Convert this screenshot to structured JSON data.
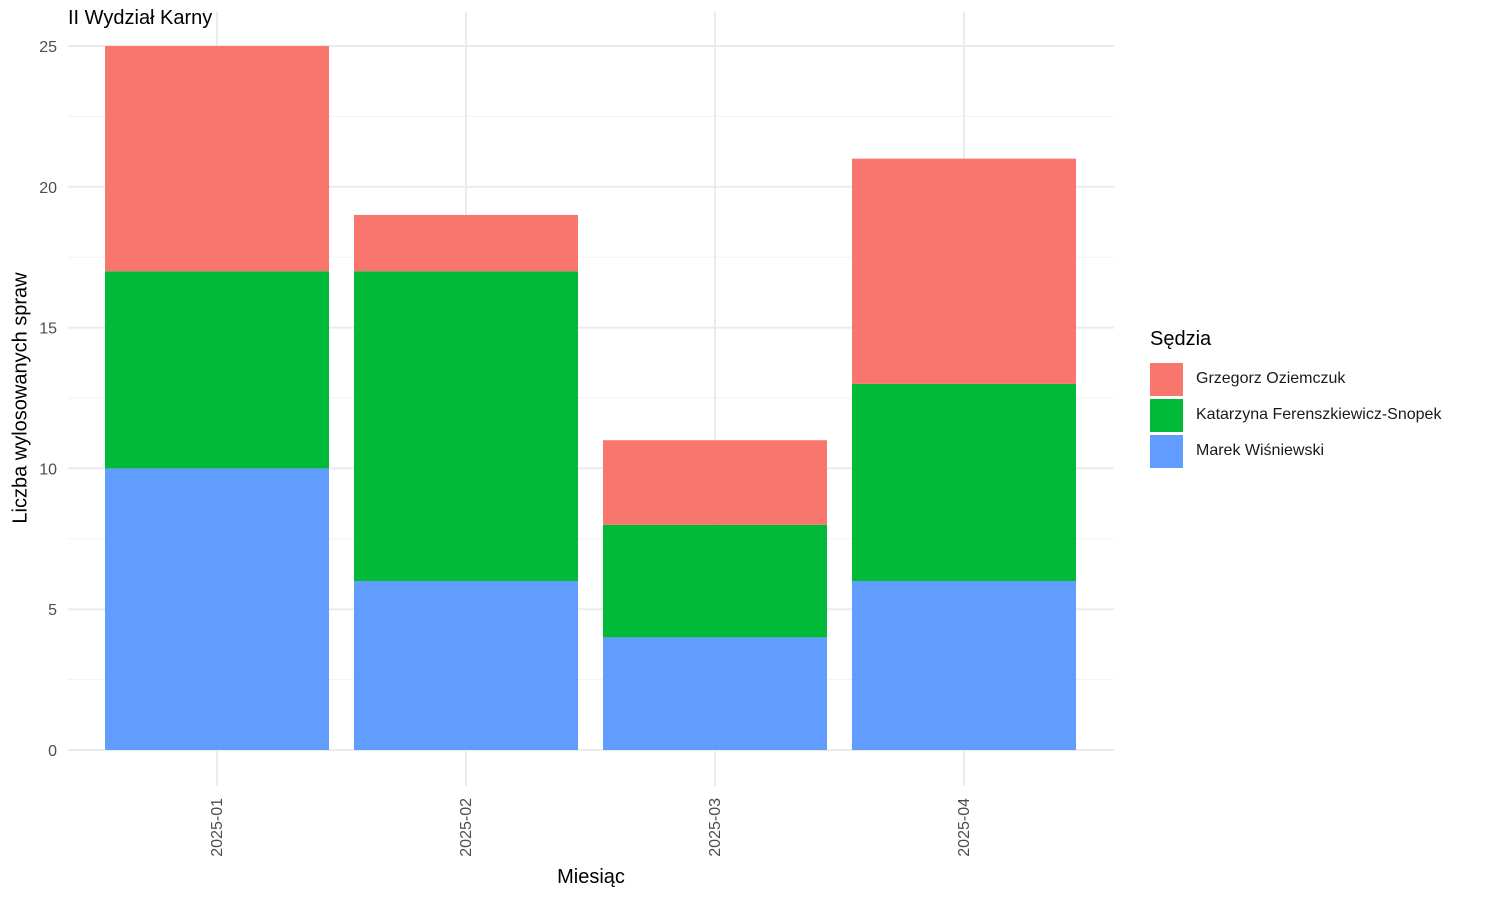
{
  "chart_data": {
    "type": "bar",
    "stacked": true,
    "title": "II Wydział Karny",
    "xlabel": "Miesiąc",
    "ylabel": "Liczba wylosowanych spraw",
    "categories": [
      "2025-01",
      "2025-02",
      "2025-03",
      "2025-04"
    ],
    "ylim": [
      0,
      25
    ],
    "yticks": [
      0,
      5,
      10,
      15,
      20,
      25
    ],
    "grid": true,
    "legend_title": "Sędzia",
    "legend_position": "right",
    "series": [
      {
        "name": "Grzegorz Oziemczuk",
        "color": "#F8766D",
        "values": [
          8,
          2,
          3,
          8
        ]
      },
      {
        "name": "Katarzyna Ferenszkiewicz-Snopek",
        "color": "#00BA38",
        "values": [
          7,
          11,
          4,
          7
        ]
      },
      {
        "name": "Marek Wiśniewski",
        "color": "#619CFF",
        "values": [
          10,
          6,
          4,
          6
        ]
      }
    ]
  }
}
